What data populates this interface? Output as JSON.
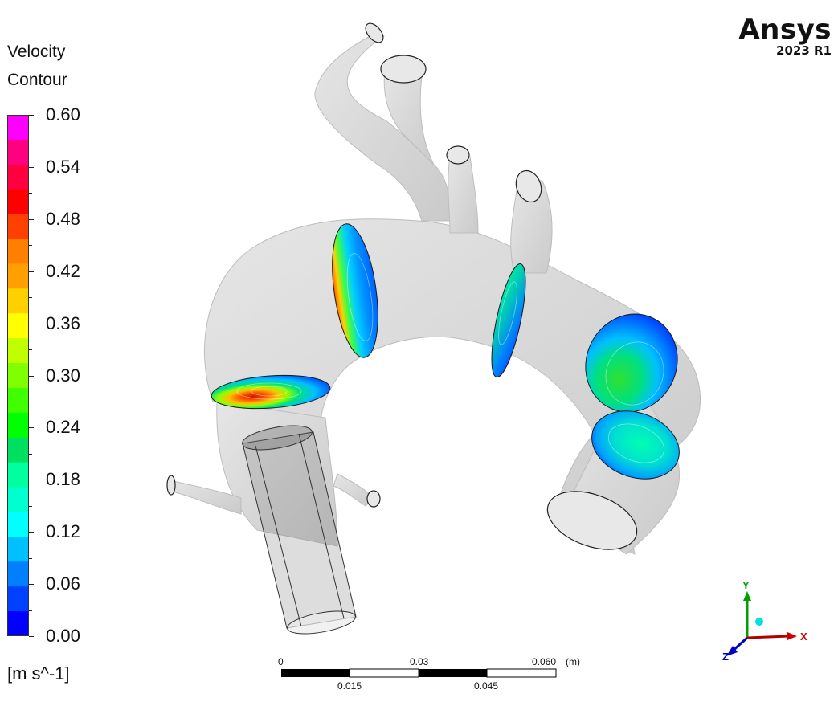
{
  "legend": {
    "title_line1": "Velocity",
    "title_line2": "Contour",
    "ticks": [
      "0.60",
      "0.54",
      "0.48",
      "0.42",
      "0.36",
      "0.30",
      "0.24",
      "0.18",
      "0.12",
      "0.06",
      "0.00"
    ],
    "units": "[m s^-1]",
    "colors": [
      "#ff00ff",
      "#ff0080",
      "#ff0040",
      "#ff0000",
      "#ff4000",
      "#ff7f00",
      "#ffa000",
      "#ffd000",
      "#ffff00",
      "#c0ff00",
      "#80ff00",
      "#40ff00",
      "#00ff00",
      "#00e060",
      "#00ff9f",
      "#00ffcf",
      "#00ffff",
      "#00c0ff",
      "#0080ff",
      "#0040ff",
      "#0000ff"
    ]
  },
  "brand": {
    "name": "Ansys",
    "version": "2023 R1"
  },
  "scale_bar": {
    "top_labels": [
      "0",
      "0.03",
      "0.060"
    ],
    "unit": "(m)",
    "bottom_labels": [
      "0.015",
      "0.045"
    ]
  },
  "triad": {
    "x_label": "X",
    "y_label": "Y",
    "z_label": "Z"
  }
}
